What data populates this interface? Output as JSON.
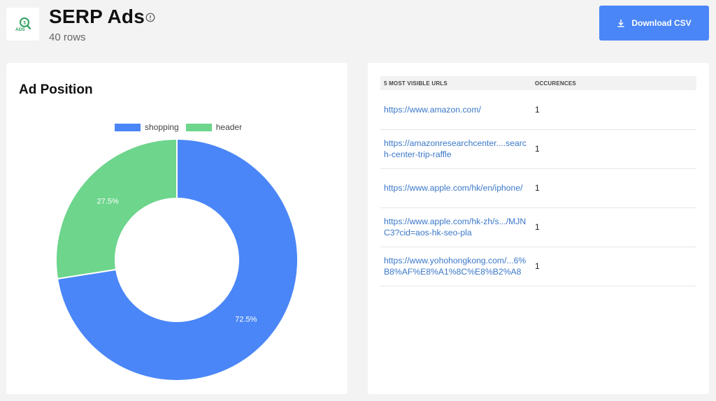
{
  "header": {
    "title": "SERP Ads",
    "rows_label": "40 rows",
    "logo_text": "ADS",
    "download_label": "Download CSV"
  },
  "colors": {
    "accent": "#4a86f7",
    "shopping": "#4a86f7",
    "header": "#6dd58c",
    "link": "#3b78c9"
  },
  "left_card": {
    "title": "Ad Position"
  },
  "chart_data": {
    "type": "pie",
    "donut": true,
    "title": "Ad Position",
    "legend_position": "top",
    "slices": [
      {
        "label": "shopping",
        "value": 72.5,
        "display": "72.5%",
        "color": "#4a86f7"
      },
      {
        "label": "header",
        "value": 27.5,
        "display": "27.5%",
        "color": "#6dd58c"
      }
    ]
  },
  "urls_table": {
    "columns": [
      "5 MOST VISIBLE URLS",
      "OCCURENCES"
    ],
    "rows": [
      {
        "url": "https://www.amazon.com/",
        "occurrences": "1"
      },
      {
        "url": "https://amazonresearchcenter....search-center-trip-raffle",
        "occurrences": "1"
      },
      {
        "url": "https://www.apple.com/hk/en/iphone/",
        "occurrences": "1"
      },
      {
        "url": "https://www.apple.com/hk-zh/s.../MJNC3?cid=aos-hk-seo-pla",
        "occurrences": "1"
      },
      {
        "url": "https://www.yohohongkong.com/...6%B8%AF%E8%A1%8C%E8%B2%A8",
        "occurrences": "1"
      }
    ]
  }
}
